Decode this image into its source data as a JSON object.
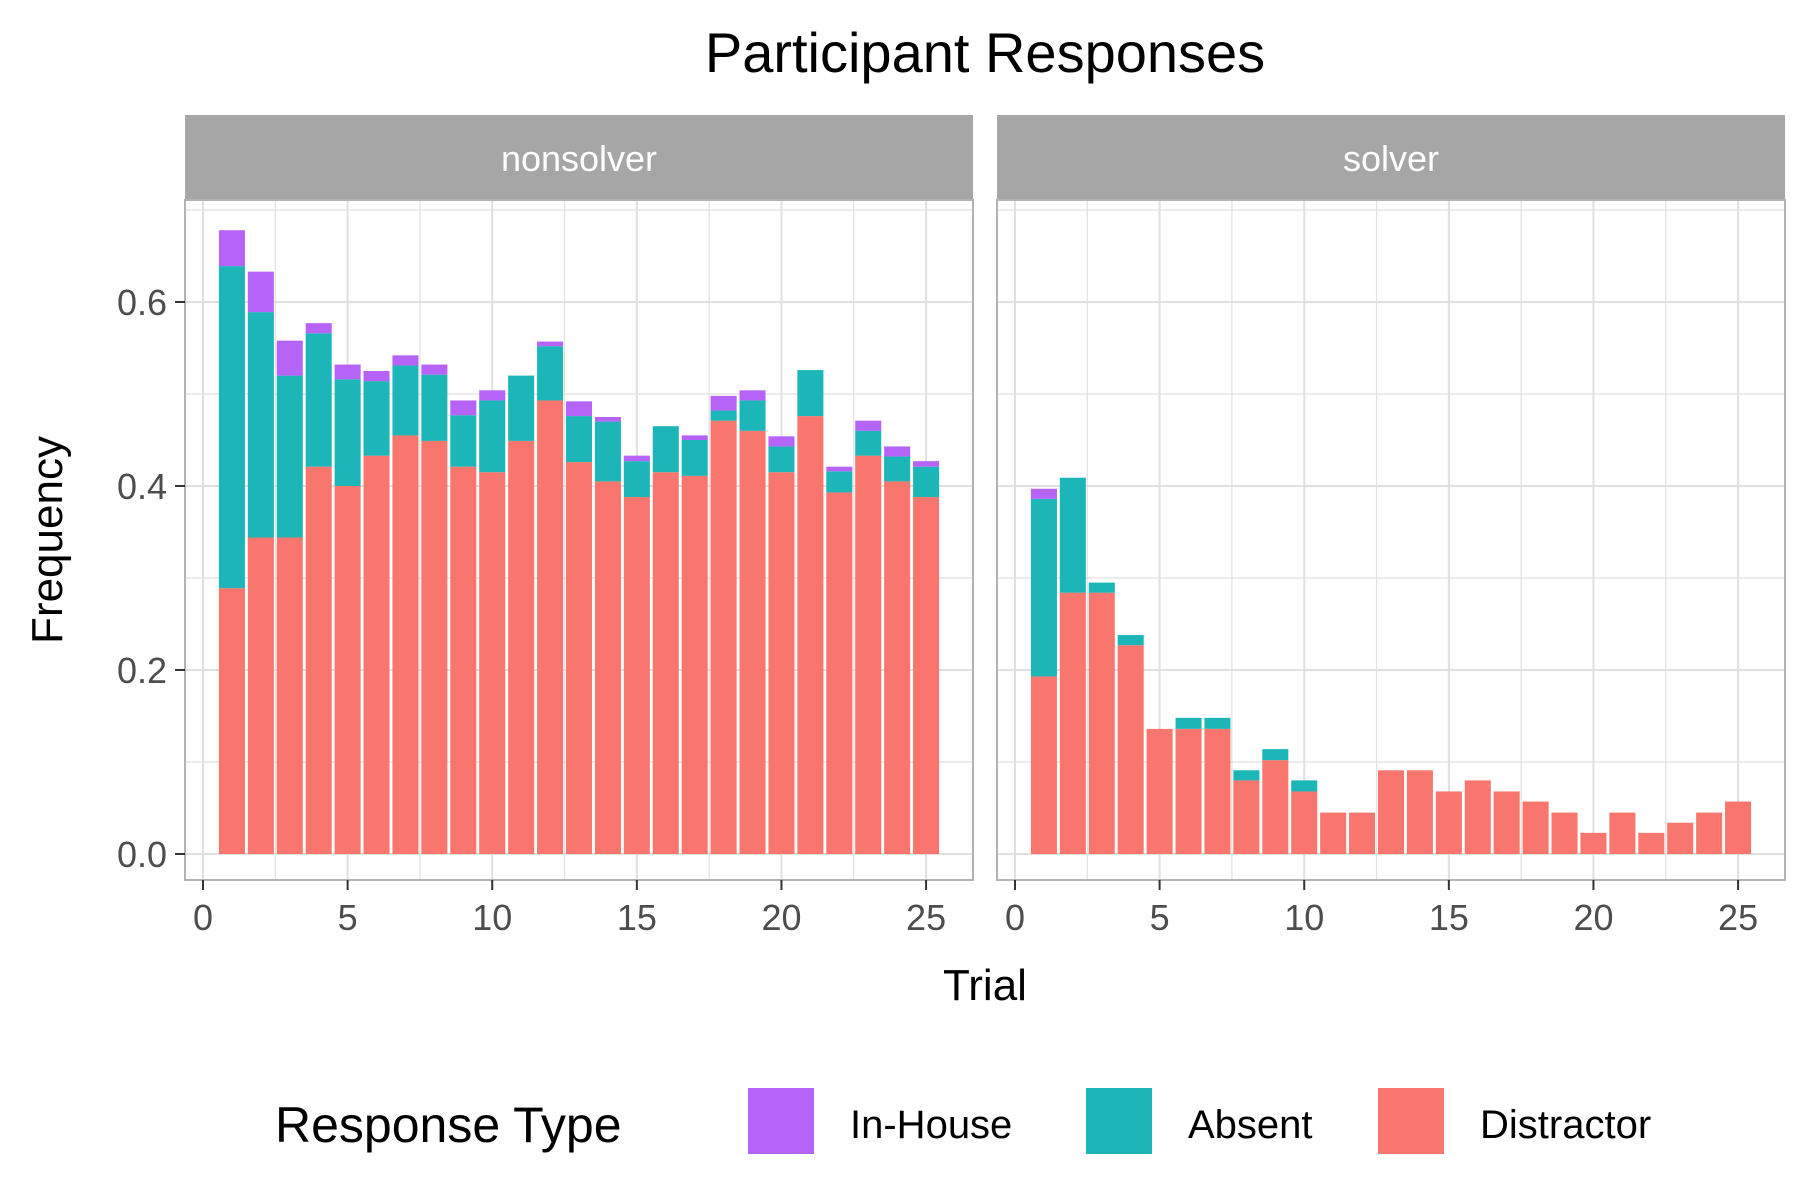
{
  "chart_data": {
    "type": "bar",
    "stacked": true,
    "title": "Participant Responses",
    "xlabel": "Trial",
    "ylabel": "Frequency",
    "xlim": [
      0,
      26
    ],
    "ylim": [
      0,
      0.7
    ],
    "x_ticks": [
      0,
      5,
      10,
      15,
      20,
      25
    ],
    "y_ticks": [
      0.0,
      0.2,
      0.4,
      0.6
    ],
    "y_tick_labels": [
      "0.0",
      "0.2",
      "0.4",
      "0.6"
    ],
    "grid": true,
    "legend": {
      "title": "Response Type",
      "position": "bottom",
      "entries": [
        "In-House",
        "Absent",
        "Distractor"
      ]
    },
    "colors": {
      "Distractor": "#F8766D",
      "Absent": "#1CB5B8",
      "In-House": "#B664F7",
      "strip": "#A6A6A6",
      "grid": "#E0E0E0",
      "panel_border": "#B3B3B3"
    },
    "stack_order": [
      "Distractor",
      "Absent",
      "In-House"
    ],
    "x": [
      1,
      2,
      3,
      4,
      5,
      6,
      7,
      8,
      9,
      10,
      11,
      12,
      13,
      14,
      15,
      16,
      17,
      18,
      19,
      20,
      21,
      22,
      23,
      24,
      25
    ],
    "facets": [
      {
        "name": "nonsolver",
        "series": [
          {
            "name": "Distractor",
            "values": [
              0.289,
              0.344,
              0.344,
              0.421,
              0.4,
              0.433,
              0.455,
              0.449,
              0.421,
              0.415,
              0.449,
              0.493,
              0.426,
              0.405,
              0.388,
              0.415,
              0.411,
              0.471,
              0.46,
              0.415,
              0.476,
              0.393,
              0.433,
              0.405,
              0.388
            ]
          },
          {
            "name": "Absent",
            "values": [
              0.35,
              0.245,
              0.176,
              0.145,
              0.116,
              0.081,
              0.076,
              0.072,
              0.056,
              0.078,
              0.071,
              0.059,
              0.05,
              0.065,
              0.039,
              0.05,
              0.039,
              0.011,
              0.033,
              0.028,
              0.05,
              0.023,
              0.027,
              0.027,
              0.033
            ]
          },
          {
            "name": "In-House",
            "values": [
              0.039,
              0.044,
              0.038,
              0.011,
              0.016,
              0.011,
              0.011,
              0.011,
              0.016,
              0.011,
              0.0,
              0.005,
              0.016,
              0.005,
              0.006,
              0.0,
              0.005,
              0.016,
              0.011,
              0.011,
              0.0,
              0.005,
              0.011,
              0.011,
              0.006
            ]
          }
        ]
      },
      {
        "name": "solver",
        "series": [
          {
            "name": "Distractor",
            "values": [
              0.193,
              0.284,
              0.284,
              0.227,
              0.136,
              0.136,
              0.136,
              0.08,
              0.102,
              0.068,
              0.045,
              0.045,
              0.091,
              0.091,
              0.068,
              0.08,
              0.068,
              0.057,
              0.045,
              0.023,
              0.045,
              0.023,
              0.034,
              0.045,
              0.057
            ]
          },
          {
            "name": "Absent",
            "values": [
              0.193,
              0.125,
              0.011,
              0.011,
              0.0,
              0.012,
              0.012,
              0.011,
              0.012,
              0.012,
              0.0,
              0.0,
              0.0,
              0.0,
              0.0,
              0.0,
              0.0,
              0.0,
              0.0,
              0.0,
              0.0,
              0.0,
              0.0,
              0.0,
              0.0
            ]
          },
          {
            "name": "In-House",
            "values": [
              0.011,
              0.0,
              0.0,
              0.0,
              0.0,
              0.0,
              0.0,
              0.0,
              0.0,
              0.0,
              0.0,
              0.0,
              0.0,
              0.0,
              0.0,
              0.0,
              0.0,
              0.0,
              0.0,
              0.0,
              0.0,
              0.0,
              0.0,
              0.0,
              0.0
            ]
          }
        ]
      }
    ]
  }
}
